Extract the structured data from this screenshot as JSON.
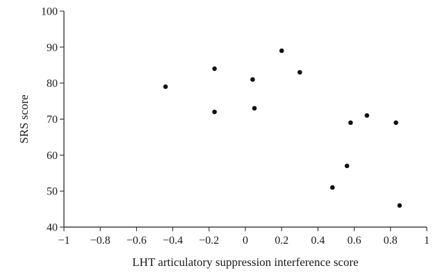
{
  "chart_data": {
    "type": "scatter",
    "title": "",
    "xlabel": "LHT articulatory suppression interference score",
    "ylabel": "SRS score",
    "xlim": [
      -1,
      1
    ],
    "ylim": [
      40,
      100
    ],
    "x_ticks": [
      -1,
      -0.8,
      -0.6,
      -0.4,
      -0.2,
      0,
      0.2,
      0.4,
      0.6,
      0.8,
      1
    ],
    "x_tick_labels": [
      "−1",
      "−0.8",
      "−0.6",
      "−0.4",
      "−0.2",
      "0",
      "0.2",
      "0.4",
      "0.6",
      "0.8",
      "1"
    ],
    "y_ticks": [
      40,
      50,
      60,
      70,
      80,
      90,
      100
    ],
    "y_tick_labels": [
      "40",
      "50",
      "60",
      "70",
      "80",
      "90",
      "100"
    ],
    "grid": false,
    "legend": "none",
    "marker_color": "#111111",
    "points": [
      {
        "x": -0.44,
        "y": 79
      },
      {
        "x": -0.17,
        "y": 84
      },
      {
        "x": -0.17,
        "y": 72
      },
      {
        "x": 0.04,
        "y": 81
      },
      {
        "x": 0.05,
        "y": 73
      },
      {
        "x": 0.2,
        "y": 89
      },
      {
        "x": 0.3,
        "y": 83
      },
      {
        "x": 0.48,
        "y": 51
      },
      {
        "x": 0.56,
        "y": 57
      },
      {
        "x": 0.58,
        "y": 69
      },
      {
        "x": 0.67,
        "y": 71
      },
      {
        "x": 0.83,
        "y": 69
      },
      {
        "x": 0.85,
        "y": 46
      }
    ]
  }
}
